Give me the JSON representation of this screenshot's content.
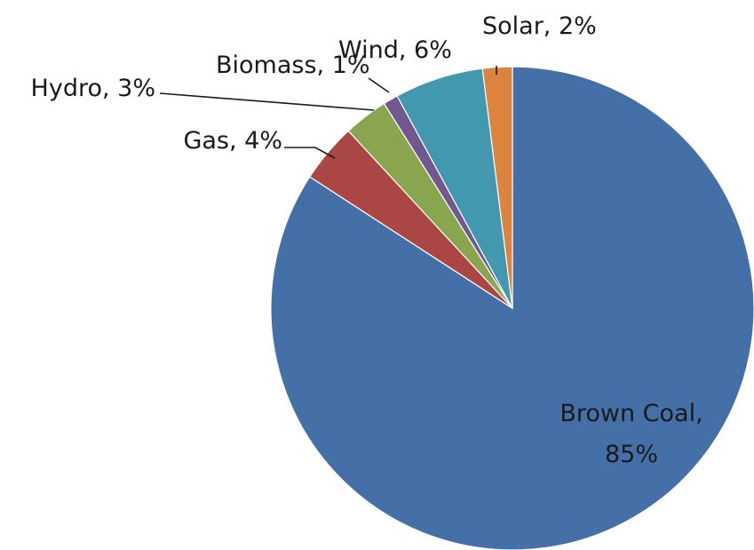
{
  "chart_data": {
    "type": "pie",
    "title": "",
    "slices": [
      {
        "name": "Brown Coal",
        "value": 85,
        "label": "Brown Coal,",
        "label_value": "85%",
        "color": "#4470A7"
      },
      {
        "name": "Gas",
        "value": 4,
        "label": "Gas, 4%",
        "color": "#AA4643"
      },
      {
        "name": "Hydro",
        "value": 3,
        "label": "Hydro, 3%",
        "color": "#89A54E"
      },
      {
        "name": "Biomass",
        "value": 1,
        "label": "Biomass, 1%",
        "color": "#71588F"
      },
      {
        "name": "Wind",
        "value": 6,
        "label": "Wind, 6%",
        "color": "#4198AF"
      },
      {
        "name": "Solar",
        "value": 2,
        "label": "Solar, 2%",
        "color": "#DB843D"
      }
    ],
    "start_angle": "12 o'clock",
    "direction": "clockwise",
    "legend": "none"
  }
}
